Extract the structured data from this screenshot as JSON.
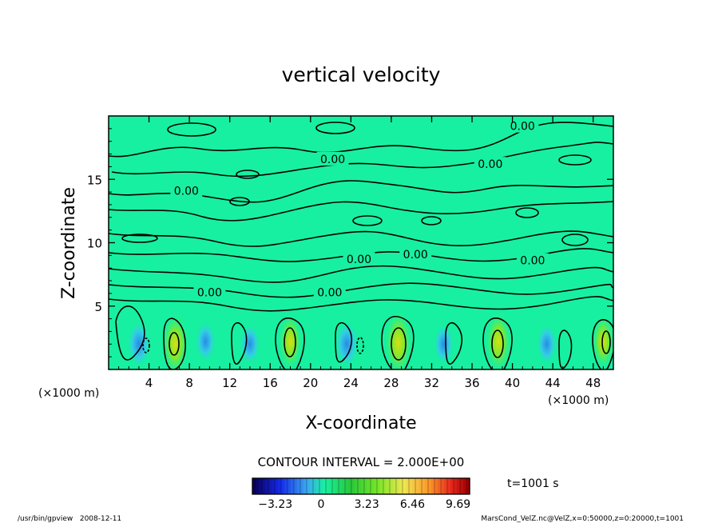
{
  "chart_data": {
    "type": "heatmap",
    "title": "vertical velocity",
    "xlabel": "X-coordinate",
    "ylabel": "Z-coordinate",
    "x_unit_left": "(×1000 m)",
    "x_unit_right": "(×1000 m)",
    "xlim": [
      0,
      50
    ],
    "ylim": [
      0,
      20
    ],
    "x_ticks": [
      "4",
      "8",
      "12",
      "16",
      "20",
      "24",
      "28",
      "32",
      "36",
      "40",
      "44",
      "48"
    ],
    "x_tick_values": [
      4,
      8,
      12,
      16,
      20,
      24,
      28,
      32,
      36,
      40,
      44,
      48
    ],
    "y_ticks": [
      "5",
      "10",
      "15"
    ],
    "y_tick_values": [
      5,
      10,
      15
    ],
    "contour_interval_text": "CONTOUR INTERVAL = 2.000E+00",
    "contour_labels": [
      {
        "text": "0.00",
        "x": 22.2,
        "z": 16.6
      },
      {
        "text": "0.00",
        "x": 7.7,
        "z": 14.1
      },
      {
        "text": "0.00",
        "x": 41.0,
        "z": 19.2
      },
      {
        "text": "0.00",
        "x": 37.8,
        "z": 16.2
      },
      {
        "text": "0.00",
        "x": 24.8,
        "z": 8.7
      },
      {
        "text": "0.00",
        "x": 30.4,
        "z": 9.1
      },
      {
        "text": "0.00",
        "x": 42.0,
        "z": 8.6
      },
      {
        "text": "0.00",
        "x": 10.0,
        "z": 6.1
      },
      {
        "text": "0.00",
        "x": 21.9,
        "z": 6.1
      }
    ],
    "updrafts": [
      {
        "x": 6.6,
        "z": 2.0,
        "value": 6.0
      },
      {
        "x": 18.0,
        "z": 2.2,
        "value": 4.5
      },
      {
        "x": 28.7,
        "z": 2.1,
        "value": 6.5
      },
      {
        "x": 38.6,
        "z": 2.2,
        "value": 5.5
      },
      {
        "x": 49.0,
        "z": 2.2,
        "value": 4.0
      }
    ],
    "downdrafts": [
      {
        "x": 3.0,
        "z": 2.0,
        "value": -2.5
      },
      {
        "x": 9.6,
        "z": 2.2,
        "value": -1.5
      },
      {
        "x": 14.0,
        "z": 2.0,
        "value": -1.5
      },
      {
        "x": 23.6,
        "z": 2.0,
        "value": -2.5
      },
      {
        "x": 33.2,
        "z": 2.0,
        "value": -1.5
      },
      {
        "x": 43.4,
        "z": 2.0,
        "value": -1.5
      }
    ],
    "colorbar": {
      "min": -4.85,
      "max": 10.5,
      "tick_labels": [
        "−3.23",
        "0",
        "3.23",
        "6.46",
        "9.69"
      ],
      "tick_values": [
        -3.23,
        0,
        3.23,
        6.46,
        9.69
      ]
    },
    "time_label": "t=1001 s",
    "colors": {
      "background_field": "#17f0a0",
      "contour": "#000000"
    }
  },
  "footer": {
    "left": "/usr/bin/gpview   2008-12-11",
    "right": "MarsCond_VelZ.nc@VelZ,x=0:50000,z=0:20000,t=1001"
  }
}
